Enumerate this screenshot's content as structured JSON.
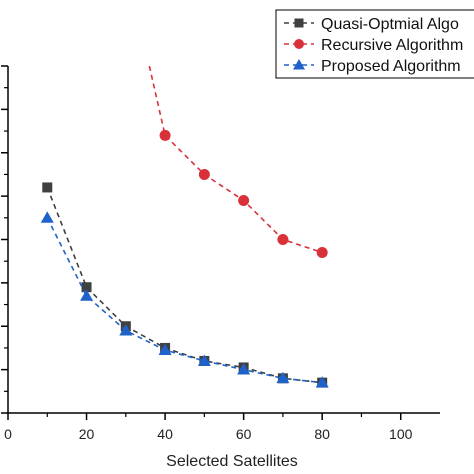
{
  "chart_data": {
    "type": "line",
    "title": "",
    "xlabel": "Selected Satellites",
    "ylabel": "",
    "xlim": [
      0,
      110
    ],
    "xticks": [
      0,
      20,
      40,
      60,
      80,
      100
    ],
    "xtick_labels": [
      "0",
      "20",
      "40",
      "60",
      "80",
      "100"
    ],
    "ylim": [
      0,
      8
    ],
    "grid": false,
    "legend_position": "top-right",
    "series": [
      {
        "name": "Quasi-Optmial Algo",
        "color": "#404040",
        "marker": "square",
        "line_style": "dashed",
        "x": [
          10,
          20,
          30,
          40,
          50,
          60,
          70,
          80
        ],
        "y": [
          5.2,
          2.9,
          2.0,
          1.5,
          1.2,
          1.05,
          0.8,
          0.7
        ]
      },
      {
        "name": "Recursive Algorithm",
        "color": "#d9313a",
        "marker": "circle",
        "line_style": "dashed",
        "x": [
          36,
          40,
          50,
          60,
          70,
          80
        ],
        "y": [
          8.0,
          6.4,
          5.5,
          4.9,
          4.0,
          3.7
        ]
      },
      {
        "name": "Proposed Algorithm",
        "color": "#1f62c9",
        "marker": "triangle",
        "line_style": "dashed",
        "x": [
          10,
          20,
          30,
          40,
          50,
          60,
          70,
          80
        ],
        "y": [
          4.5,
          2.7,
          1.9,
          1.45,
          1.2,
          1.0,
          0.8,
          0.7
        ]
      }
    ]
  }
}
